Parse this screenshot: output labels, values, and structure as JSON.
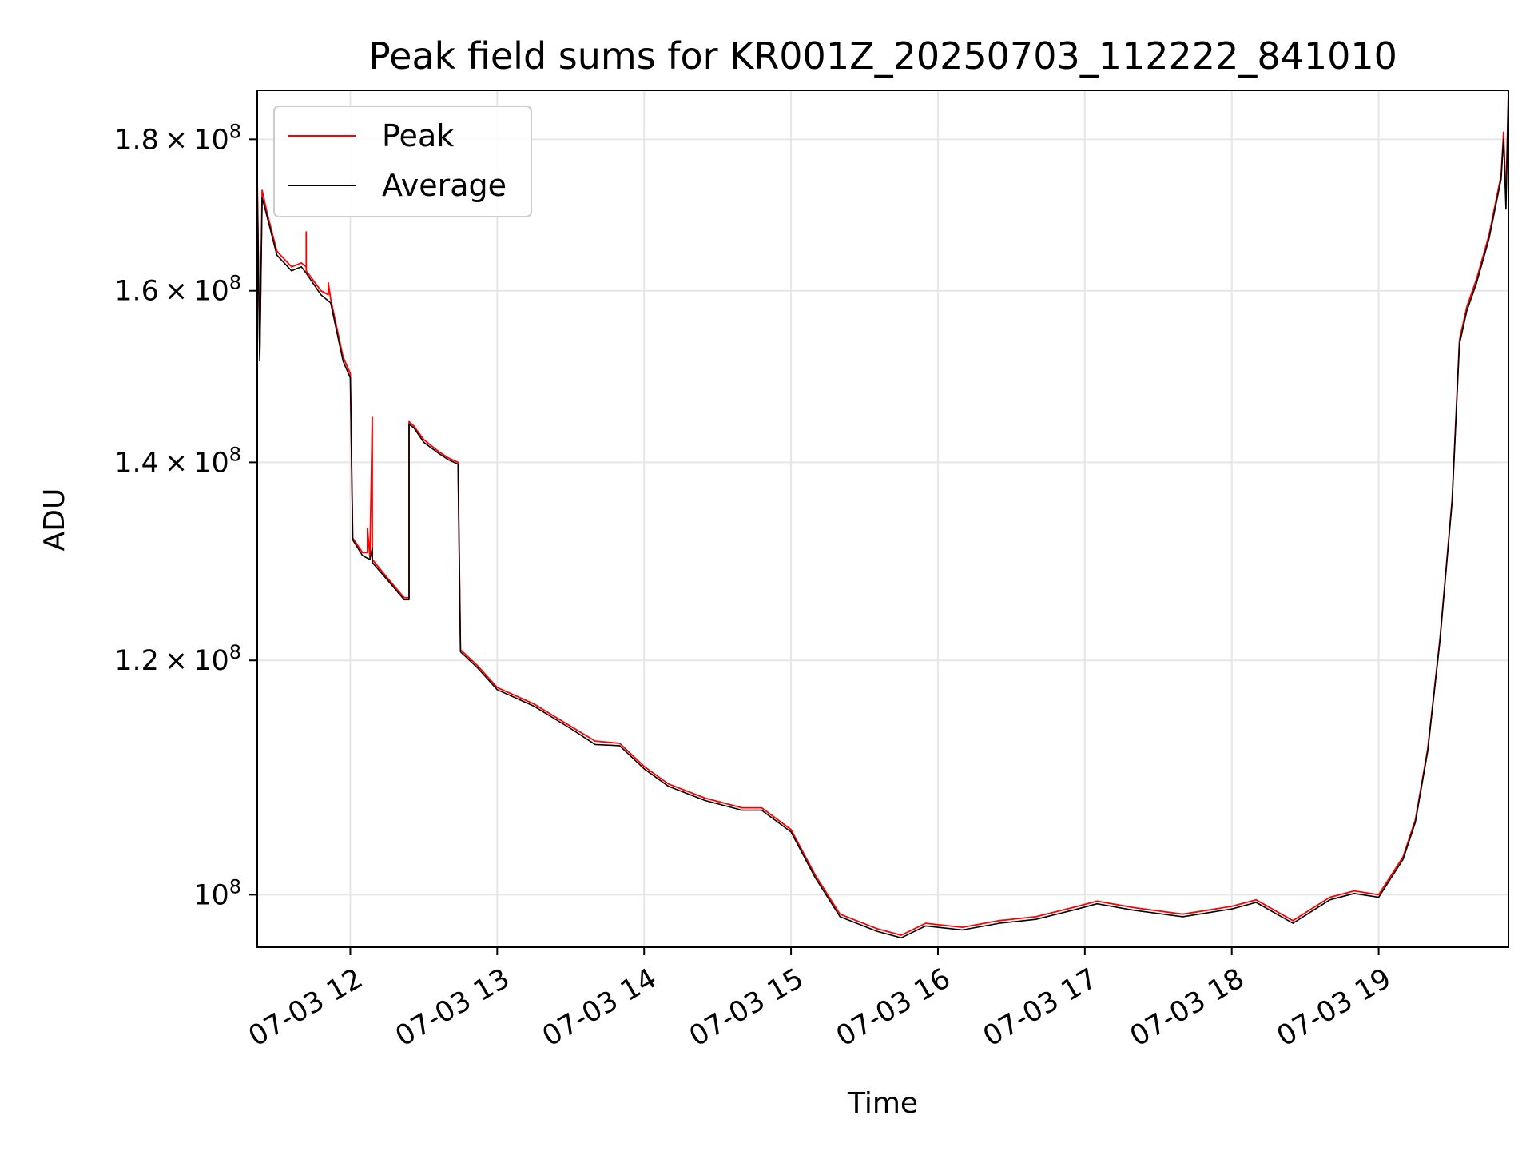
{
  "chart_data": {
    "type": "line",
    "title": "Peak field sums for KR001Z_20250703_112222_841010",
    "xlabel": "Time",
    "ylabel": "ADU",
    "x_axis": "datetime",
    "xlim": [
      "07-03 11:22",
      "07-03 19:53"
    ],
    "xticks": [
      {
        "t": "07-03 12:00",
        "label": "07-03 12"
      },
      {
        "t": "07-03 13:00",
        "label": "07-03 13"
      },
      {
        "t": "07-03 14:00",
        "label": "07-03 14"
      },
      {
        "t": "07-03 15:00",
        "label": "07-03 15"
      },
      {
        "t": "07-03 16:00",
        "label": "07-03 16"
      },
      {
        "t": "07-03 17:00",
        "label": "07-03 17"
      },
      {
        "t": "07-03 18:00",
        "label": "07-03 18"
      },
      {
        "t": "07-03 19:00",
        "label": "07-03 19"
      }
    ],
    "y_scale": "log",
    "ylim": [
      96000000,
      187000000
    ],
    "yticks": [
      {
        "value": 100000000,
        "mantissa": "",
        "exp": "8"
      },
      {
        "value": 120000000,
        "mantissa": "1.2",
        "exp": "8"
      },
      {
        "value": 140000000,
        "mantissa": "1.4",
        "exp": "8"
      },
      {
        "value": 160000000,
        "mantissa": "1.6",
        "exp": "8"
      },
      {
        "value": 180000000,
        "mantissa": "1.8",
        "exp": "8"
      }
    ],
    "grid": true,
    "legend_position": "upper left",
    "series": [
      {
        "name": "Peak",
        "color": "#ff0000",
        "points": [
          [
            "07-03 11:22",
            175000000
          ],
          [
            "07-03 11:23",
            152000000
          ],
          [
            "07-03 11:24",
            173000000
          ],
          [
            "07-03 11:26",
            170000000
          ],
          [
            "07-03 11:30",
            165000000
          ],
          [
            "07-03 11:36",
            163000000
          ],
          [
            "07-03 11:40",
            163500000
          ],
          [
            "07-03 11:42",
            163000000
          ],
          [
            "07-03 11:42",
            167500000
          ],
          [
            "07-03 11:42",
            162500000
          ],
          [
            "07-03 11:48",
            160000000
          ],
          [
            "07-03 11:51",
            159500000
          ],
          [
            "07-03 11:51",
            161000000
          ],
          [
            "07-03 11:52",
            159000000
          ],
          [
            "07-03 11:57",
            152000000
          ],
          [
            "07-03 12:00",
            150000000
          ],
          [
            "07-03 12:01",
            132000000
          ],
          [
            "07-03 12:05",
            130500000
          ],
          [
            "07-03 12:07",
            130500000
          ],
          [
            "07-03 12:07",
            133000000
          ],
          [
            "07-03 12:08",
            130000000
          ],
          [
            "07-03 12:09",
            145000000
          ],
          [
            "07-03 12:09",
            129800000
          ],
          [
            "07-03 12:15",
            128000000
          ],
          [
            "07-03 12:22",
            126000000
          ],
          [
            "07-03 12:24",
            126000000
          ],
          [
            "07-03 12:24",
            144500000
          ],
          [
            "07-03 12:26",
            144000000
          ],
          [
            "07-03 12:30",
            142500000
          ],
          [
            "07-03 12:36",
            141200000
          ],
          [
            "07-03 12:40",
            140500000
          ],
          [
            "07-03 12:44",
            140000000
          ],
          [
            "07-03 12:45",
            121000000
          ],
          [
            "07-03 12:52",
            119500000
          ],
          [
            "07-03 13:00",
            117500000
          ],
          [
            "07-03 13:15",
            116000000
          ],
          [
            "07-03 13:30",
            114000000
          ],
          [
            "07-03 13:40",
            112700000
          ],
          [
            "07-03 13:50",
            112500000
          ],
          [
            "07-03 14:00",
            110500000
          ],
          [
            "07-03 14:10",
            109000000
          ],
          [
            "07-03 14:25",
            107800000
          ],
          [
            "07-03 14:40",
            107000000
          ],
          [
            "07-03 14:48",
            107000000
          ],
          [
            "07-03 15:00",
            105200000
          ],
          [
            "07-03 15:10",
            101500000
          ],
          [
            "07-03 15:20",
            98500000
          ],
          [
            "07-03 15:35",
            97400000
          ],
          [
            "07-03 15:45",
            96900000
          ],
          [
            "07-03 15:55",
            97800000
          ],
          [
            "07-03 16:10",
            97500000
          ],
          [
            "07-03 16:25",
            98000000
          ],
          [
            "07-03 16:40",
            98300000
          ],
          [
            "07-03 16:55",
            99000000
          ],
          [
            "07-03 17:05",
            99500000
          ],
          [
            "07-03 17:20",
            99000000
          ],
          [
            "07-03 17:40",
            98500000
          ],
          [
            "07-03 18:00",
            99100000
          ],
          [
            "07-03 18:10",
            99600000
          ],
          [
            "07-03 18:25",
            98000000
          ],
          [
            "07-03 18:40",
            99800000
          ],
          [
            "07-03 18:50",
            100300000
          ],
          [
            "07-03 19:00",
            100000000
          ],
          [
            "07-03 19:10",
            103000000
          ],
          [
            "07-03 19:15",
            106000000
          ],
          [
            "07-03 19:20",
            112000000
          ],
          [
            "07-03 19:25",
            122000000
          ],
          [
            "07-03 19:30",
            136000000
          ],
          [
            "07-03 19:33",
            154000000
          ],
          [
            "07-03 19:36",
            158000000
          ],
          [
            "07-03 19:40",
            161500000
          ],
          [
            "07-03 19:45",
            167000000
          ],
          [
            "07-03 19:50",
            175000000
          ],
          [
            "07-03 19:51",
            181000000
          ],
          [
            "07-03 19:52",
            172000000
          ],
          [
            "07-03 19:53",
            187000000
          ]
        ]
      },
      {
        "name": "Average",
        "color": "#000000",
        "points": [
          [
            "07-03 11:22",
            174000000
          ],
          [
            "07-03 11:23",
            151500000
          ],
          [
            "07-03 11:24",
            172000000
          ],
          [
            "07-03 11:26",
            169500000
          ],
          [
            "07-03 11:30",
            164500000
          ],
          [
            "07-03 11:36",
            162500000
          ],
          [
            "07-03 11:40",
            163000000
          ],
          [
            "07-03 11:42",
            162200000
          ],
          [
            "07-03 11:48",
            159500000
          ],
          [
            "07-03 11:52",
            158500000
          ],
          [
            "07-03 11:57",
            151500000
          ],
          [
            "07-03 12:00",
            149500000
          ],
          [
            "07-03 12:01",
            131800000
          ],
          [
            "07-03 12:05",
            130200000
          ],
          [
            "07-03 12:08",
            129800000
          ],
          [
            "07-03 12:09",
            131000000
          ],
          [
            "07-03 12:09",
            129500000
          ],
          [
            "07-03 12:15",
            127800000
          ],
          [
            "07-03 12:22",
            125800000
          ],
          [
            "07-03 12:24",
            125800000
          ],
          [
            "07-03 12:24",
            144200000
          ],
          [
            "07-03 12:26",
            143800000
          ],
          [
            "07-03 12:30",
            142200000
          ],
          [
            "07-03 12:36",
            141000000
          ],
          [
            "07-03 12:40",
            140300000
          ],
          [
            "07-03 12:44",
            139800000
          ],
          [
            "07-03 12:45",
            120800000
          ],
          [
            "07-03 12:52",
            119300000
          ],
          [
            "07-03 13:00",
            117300000
          ],
          [
            "07-03 13:15",
            115800000
          ],
          [
            "07-03 13:30",
            113800000
          ],
          [
            "07-03 13:40",
            112400000
          ],
          [
            "07-03 13:50",
            112300000
          ],
          [
            "07-03 14:00",
            110300000
          ],
          [
            "07-03 14:10",
            108800000
          ],
          [
            "07-03 14:25",
            107600000
          ],
          [
            "07-03 14:40",
            106800000
          ],
          [
            "07-03 14:48",
            106800000
          ],
          [
            "07-03 15:00",
            105000000
          ],
          [
            "07-03 15:10",
            101300000
          ],
          [
            "07-03 15:20",
            98300000
          ],
          [
            "07-03 15:35",
            97200000
          ],
          [
            "07-03 15:45",
            96700000
          ],
          [
            "07-03 15:55",
            97600000
          ],
          [
            "07-03 16:10",
            97300000
          ],
          [
            "07-03 16:25",
            97800000
          ],
          [
            "07-03 16:40",
            98100000
          ],
          [
            "07-03 16:55",
            98800000
          ],
          [
            "07-03 17:05",
            99300000
          ],
          [
            "07-03 17:20",
            98800000
          ],
          [
            "07-03 17:40",
            98300000
          ],
          [
            "07-03 18:00",
            98900000
          ],
          [
            "07-03 18:10",
            99400000
          ],
          [
            "07-03 18:25",
            97800000
          ],
          [
            "07-03 18:40",
            99600000
          ],
          [
            "07-03 18:50",
            100100000
          ],
          [
            "07-03 19:00",
            99800000
          ],
          [
            "07-03 19:10",
            102800000
          ],
          [
            "07-03 19:15",
            105800000
          ],
          [
            "07-03 19:20",
            111800000
          ],
          [
            "07-03 19:25",
            121800000
          ],
          [
            "07-03 19:30",
            135800000
          ],
          [
            "07-03 19:33",
            153500000
          ],
          [
            "07-03 19:36",
            157500000
          ],
          [
            "07-03 19:40",
            161000000
          ],
          [
            "07-03 19:45",
            166500000
          ],
          [
            "07-03 19:50",
            174500000
          ],
          [
            "07-03 19:51",
            180000000
          ],
          [
            "07-03 19:52",
            170500000
          ],
          [
            "07-03 19:53",
            186500000
          ]
        ]
      }
    ]
  }
}
